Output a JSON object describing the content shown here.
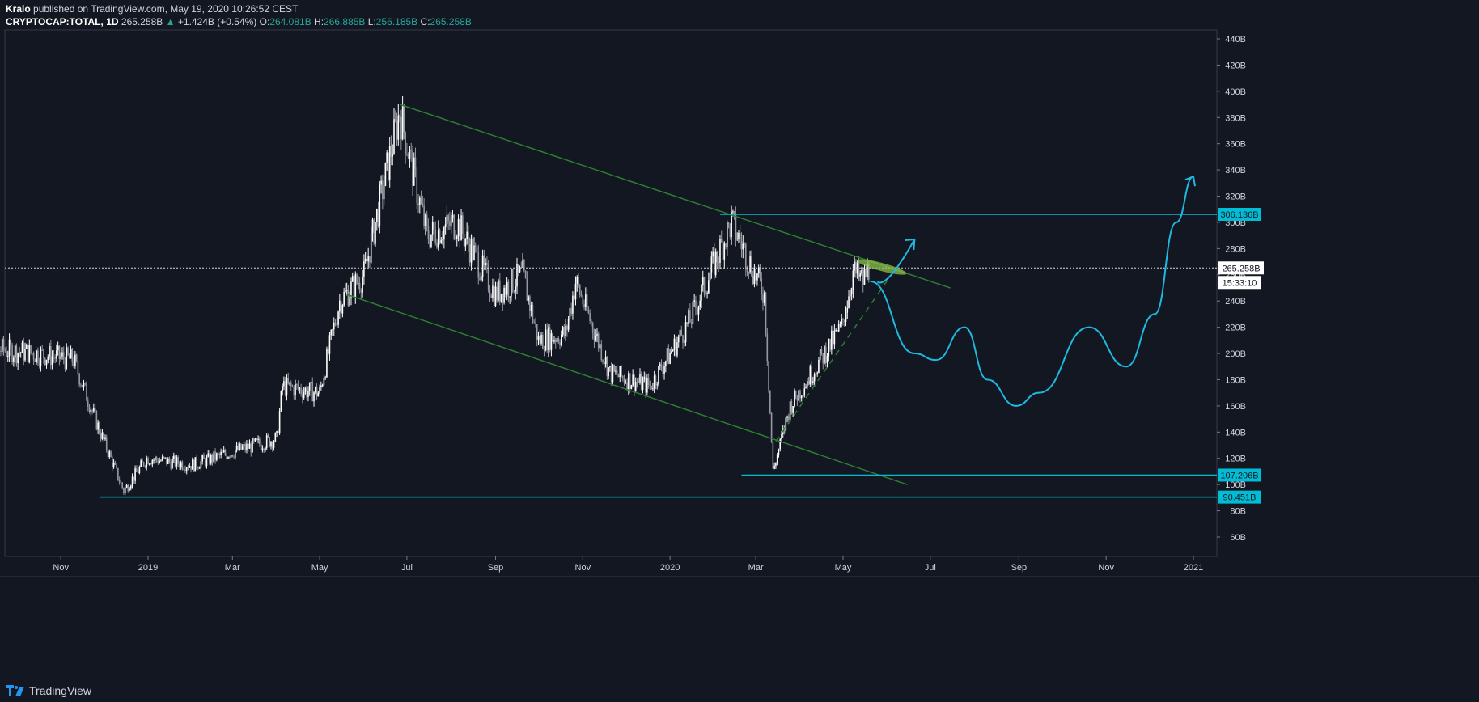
{
  "header": {
    "author": "Kralo",
    "published_text": "published on TradingView.com, May 19, 2020 10:26:52 CEST",
    "symbol": "CRYPTOCAP:TOTAL, 1D",
    "last": "265.258B",
    "change_arrow": "▲",
    "change": "+1.424B (+0.54%)",
    "o_label": "O:",
    "o": "264.081B",
    "h_label": "H:",
    "h": "266.885B",
    "l_label": "L:",
    "l": "256.185B",
    "c_label": "C:",
    "c": "265.258B"
  },
  "footer": {
    "brand": "TradingView"
  },
  "colors": {
    "background": "#131722",
    "grid": "#1e222d",
    "candle": "#ffffff",
    "candle_down": "#9598a1",
    "channel": "#2e7d32",
    "level": "#00bcd4",
    "projection": "#1fb8e0",
    "highlight": "#8bc34a"
  },
  "chart_data": {
    "type": "candlestick",
    "title": "CRYPTOCAP:TOTAL, 1D",
    "x_tick_labels": [
      "Nov",
      "2019",
      "Mar",
      "May",
      "Jul",
      "Sep",
      "Nov",
      "2020",
      "Mar",
      "May",
      "Jul",
      "Sep",
      "Nov",
      "2021"
    ],
    "x_tick_dates": [
      "2018-11-01",
      "2019-01-01",
      "2019-03-01",
      "2019-05-01",
      "2019-07-01",
      "2019-09-01",
      "2019-11-01",
      "2020-01-01",
      "2020-03-01",
      "2020-05-01",
      "2020-07-01",
      "2020-09-01",
      "2020-11-01",
      "2021-01-01"
    ],
    "y_tick_labels": [
      "60B",
      "80B",
      "100B",
      "120B",
      "140B",
      "160B",
      "180B",
      "200B",
      "220B",
      "240B",
      "260B",
      "280B",
      "300B",
      "320B",
      "340B",
      "360B",
      "380B",
      "400B",
      "420B",
      "440B"
    ],
    "y_tick_values": [
      60,
      80,
      100,
      120,
      140,
      160,
      180,
      200,
      220,
      240,
      260,
      280,
      300,
      320,
      340,
      360,
      380,
      400,
      420,
      440
    ],
    "ylim": [
      45,
      450
    ],
    "price_path": [
      [
        "2018-09-01",
        205
      ],
      [
        "2018-10-15",
        200
      ],
      [
        "2018-11-10",
        195
      ],
      [
        "2018-11-25",
        150
      ],
      [
        "2018-12-15",
        95
      ],
      [
        "2018-12-31",
        120
      ],
      [
        "2019-02-01",
        115
      ],
      [
        "2019-03-01",
        125
      ],
      [
        "2019-04-01",
        135
      ],
      [
        "2019-04-05",
        175
      ],
      [
        "2019-05-01",
        170
      ],
      [
        "2019-05-15",
        240
      ],
      [
        "2019-06-01",
        260
      ],
      [
        "2019-06-26",
        385
      ],
      [
        "2019-07-15",
        290
      ],
      [
        "2019-08-05",
        300
      ],
      [
        "2019-09-01",
        245
      ],
      [
        "2019-09-20",
        260
      ],
      [
        "2019-10-01",
        210
      ],
      [
        "2019-10-20",
        215
      ],
      [
        "2019-10-27",
        255
      ],
      [
        "2019-11-20",
        185
      ],
      [
        "2019-12-18",
        175
      ],
      [
        "2020-01-15",
        225
      ],
      [
        "2020-02-13",
        300
      ],
      [
        "2020-03-07",
        245
      ],
      [
        "2020-03-13",
        110
      ],
      [
        "2020-03-25",
        160
      ],
      [
        "2020-04-30",
        220
      ],
      [
        "2020-05-08",
        262
      ],
      [
        "2020-05-15",
        255
      ],
      [
        "2020-05-19",
        265
      ]
    ],
    "current_price_label": "265.258B",
    "countdown_label": "15:33:10",
    "horizontal_levels": [
      {
        "label": "306.136B",
        "value": 306.136,
        "from": "2020-02-05"
      },
      {
        "label": "107.206B",
        "value": 107.206,
        "from": "2020-02-20"
      },
      {
        "label": "90.451B",
        "value": 90.451,
        "from": "2018-11-28"
      }
    ],
    "channel_lines": [
      {
        "from": [
          "2019-06-26",
          390
        ],
        "to": [
          "2020-07-15",
          250
        ]
      },
      {
        "from": [
          "2019-05-20",
          245
        ],
        "to": [
          "2020-06-15",
          100
        ]
      }
    ],
    "dashed_trendline": {
      "from": [
        "2020-03-15",
        133
      ],
      "to": [
        "2020-06-05",
        262
      ]
    },
    "projection_path": [
      [
        "2020-05-20",
        255
      ],
      [
        "2020-06-20",
        200
      ],
      [
        "2020-07-05",
        195
      ],
      [
        "2020-07-25",
        220
      ],
      [
        "2020-08-10",
        180
      ],
      [
        "2020-08-30",
        160
      ],
      [
        "2020-09-15",
        170
      ],
      [
        "2020-10-20",
        220
      ],
      [
        "2020-11-15",
        190
      ],
      [
        "2020-12-05",
        230
      ],
      [
        "2020-12-20",
        300
      ],
      [
        "2021-01-01",
        335
      ]
    ],
    "grid": false,
    "legend": "none"
  }
}
